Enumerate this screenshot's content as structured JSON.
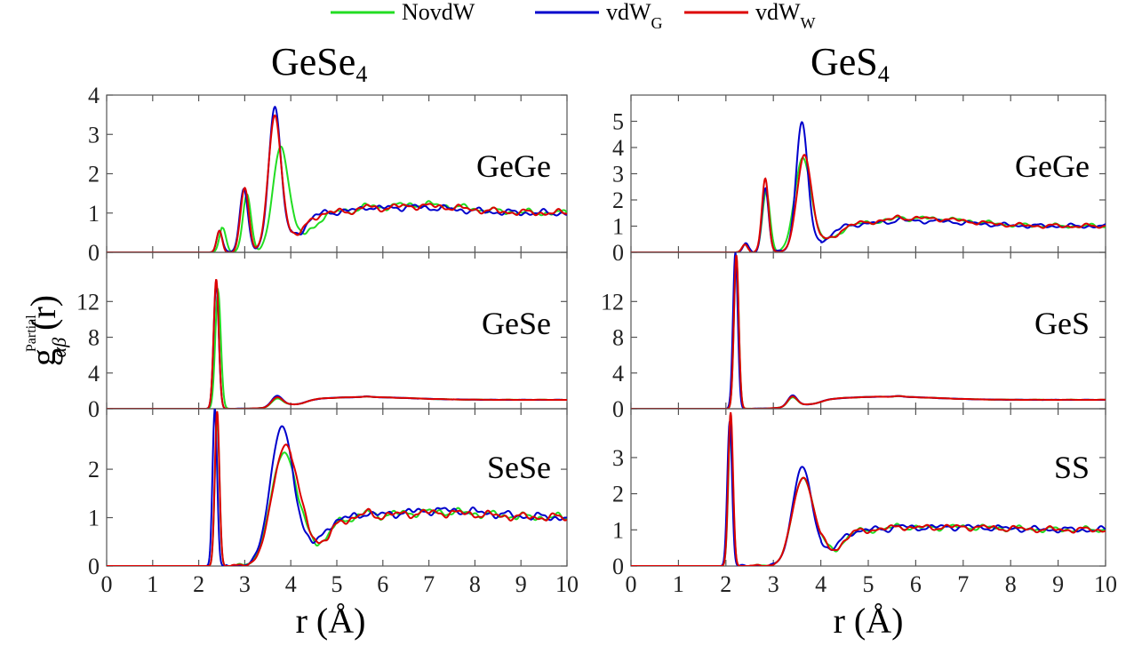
{
  "legend": [
    {
      "name": "NovdW",
      "sub": "",
      "color": "#22dd22"
    },
    {
      "name": "vdW",
      "sub": "G",
      "color": "#0000cc"
    },
    {
      "name": "vdW",
      "sub": "W",
      "color": "#dd0000"
    }
  ],
  "columns": [
    {
      "title_main": "GeSe",
      "title_sub": "4"
    },
    {
      "title_main": "GeS",
      "title_sub": "4"
    }
  ],
  "ylabel": {
    "main": "g",
    "sup": "Partial",
    "sub": "αβ",
    "tail": "(r)"
  },
  "xlabel": "r (Å)",
  "x_ticks": [
    "0",
    "1",
    "2",
    "3",
    "4",
    "5",
    "6",
    "7",
    "8",
    "9",
    "10"
  ],
  "chart_data": [
    {
      "type": "line",
      "column": 0,
      "row": 0,
      "label": "GeGe",
      "xlim": [
        0,
        10
      ],
      "ylim": [
        0,
        4
      ],
      "yticks": [
        0,
        1,
        2,
        3,
        4
      ],
      "peaks": {
        "NovdW": [
          [
            2.52,
            0.65,
            0.07
          ],
          [
            3.05,
            1.45,
            0.09
          ],
          [
            3.78,
            2.52,
            0.17
          ]
        ],
        "vdW_G": [
          [
            2.45,
            0.55,
            0.06
          ],
          [
            2.98,
            1.6,
            0.09
          ],
          [
            3.65,
            3.5,
            0.13
          ]
        ],
        "vdW_W": [
          [
            2.45,
            0.55,
            0.06
          ],
          [
            3.0,
            1.62,
            0.09
          ],
          [
            3.65,
            3.25,
            0.14
          ]
        ]
      },
      "tail": {
        "NovdW": [
          6.8,
          1.22
        ],
        "vdW_G": [
          6.6,
          1.15
        ],
        "vdW_W": [
          6.8,
          1.18
        ]
      },
      "onset": 2.2
    },
    {
      "type": "line",
      "column": 1,
      "row": 0,
      "label": "GeGe",
      "xlim": [
        0,
        10
      ],
      "ylim": [
        0,
        6
      ],
      "yticks": [
        0,
        1,
        2,
        3,
        4,
        5
      ],
      "peaks": {
        "NovdW": [
          [
            2.4,
            0.3,
            0.06
          ],
          [
            2.85,
            2.3,
            0.08
          ],
          [
            3.62,
            3.45,
            0.17
          ]
        ],
        "vdW_G": [
          [
            2.42,
            0.35,
            0.06
          ],
          [
            2.83,
            2.45,
            0.07
          ],
          [
            3.6,
            4.75,
            0.12
          ]
        ],
        "vdW_W": [
          [
            2.4,
            0.3,
            0.06
          ],
          [
            2.83,
            2.8,
            0.07
          ],
          [
            3.65,
            3.55,
            0.15
          ]
        ]
      },
      "tail": {
        "NovdW": [
          6.2,
          1.3
        ],
        "vdW_G": [
          6.1,
          1.2
        ],
        "vdW_W": [
          6.1,
          1.3
        ]
      },
      "onset": 2.2
    },
    {
      "type": "line",
      "column": 0,
      "row": 1,
      "label": "GeSe",
      "xlim": [
        0,
        10
      ],
      "ylim": [
        0,
        17.5
      ],
      "yticks": [
        0,
        4,
        8,
        12
      ],
      "peaks": {
        "NovdW": [
          [
            2.42,
            13.2,
            0.06
          ],
          [
            3.7,
            0.9,
            0.12
          ]
        ],
        "vdW_G": [
          [
            2.38,
            14.0,
            0.055
          ],
          [
            3.7,
            1.2,
            0.12
          ]
        ],
        "vdW_W": [
          [
            2.38,
            14.5,
            0.055
          ],
          [
            3.7,
            1.05,
            0.12
          ]
        ]
      },
      "tail": {
        "NovdW": [
          5.6,
          1.3
        ],
        "vdW_G": [
          5.6,
          1.3
        ],
        "vdW_W": [
          5.6,
          1.3
        ]
      },
      "onset": 2.2
    },
    {
      "type": "line",
      "column": 1,
      "row": 1,
      "label": "GeS",
      "xlim": [
        0,
        10
      ],
      "ylim": [
        0,
        17.5
      ],
      "yticks": [
        0,
        4,
        8,
        12
      ],
      "peaks": {
        "NovdW": [
          [
            2.22,
            17.0,
            0.05
          ],
          [
            3.4,
            1.0,
            0.1
          ]
        ],
        "vdW_G": [
          [
            2.2,
            17.5,
            0.05
          ],
          [
            3.4,
            1.2,
            0.1
          ]
        ],
        "vdW_W": [
          [
            2.22,
            17.2,
            0.05
          ],
          [
            3.4,
            1.1,
            0.1
          ]
        ]
      },
      "tail": {
        "NovdW": [
          5.4,
          1.35
        ],
        "vdW_G": [
          5.4,
          1.35
        ],
        "vdW_W": [
          5.4,
          1.35
        ]
      },
      "onset": 2.0
    },
    {
      "type": "line",
      "column": 0,
      "row": 2,
      "label": "SeSe",
      "xlim": [
        0,
        10
      ],
      "ylim": [
        0,
        3.25
      ],
      "yticks": [
        0,
        1,
        2
      ],
      "peaks": {
        "NovdW": [
          [
            2.4,
            3.05,
            0.05
          ],
          [
            3.85,
            2.3,
            0.28
          ]
        ],
        "vdW_G": [
          [
            2.35,
            3.25,
            0.05
          ],
          [
            3.8,
            2.8,
            0.25
          ]
        ],
        "vdW_W": [
          [
            2.4,
            3.2,
            0.05
          ],
          [
            3.88,
            2.45,
            0.28
          ]
        ]
      },
      "tail": {
        "NovdW": [
          7.2,
          1.12
        ],
        "vdW_G": [
          7.3,
          1.15
        ],
        "vdW_W": [
          7.2,
          1.1
        ]
      },
      "onset": 2.3
    },
    {
      "type": "line",
      "column": 1,
      "row": 2,
      "label": "SS",
      "xlim": [
        0,
        10
      ],
      "ylim": [
        0,
        4.35
      ],
      "yticks": [
        0,
        1,
        2,
        3
      ],
      "peaks": {
        "NovdW": [
          [
            2.1,
            3.9,
            0.05
          ],
          [
            3.62,
            2.35,
            0.22
          ]
        ],
        "vdW_G": [
          [
            2.08,
            4.0,
            0.05
          ],
          [
            3.6,
            2.62,
            0.2
          ]
        ],
        "vdW_W": [
          [
            2.1,
            4.25,
            0.05
          ],
          [
            3.62,
            2.35,
            0.22
          ]
        ]
      },
      "tail": {
        "NovdW": [
          6.8,
          1.08
        ],
        "vdW_G": [
          6.8,
          1.08
        ],
        "vdW_W": [
          6.8,
          1.08
        ]
      },
      "onset": 2.0
    }
  ]
}
